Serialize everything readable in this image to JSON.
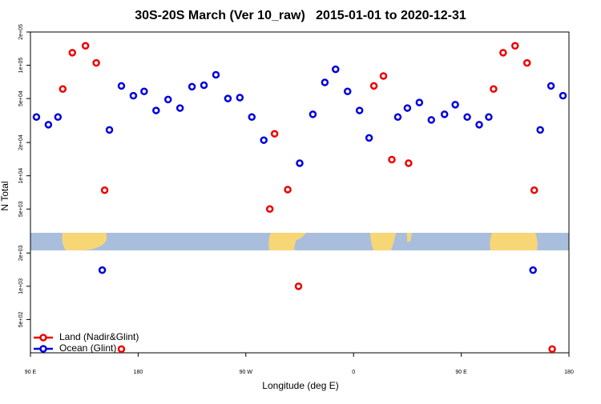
{
  "chart_data": {
    "type": "scatter",
    "title": "30S-20S March (Ver 10_raw)   2015-01-01 to 2020-12-31",
    "x_label": "Longitude (deg E)",
    "y_label": "N Total",
    "xlim": [
      90,
      540
    ],
    "xticks": [
      {
        "value": 90,
        "label": "90 E"
      },
      180,
      {
        "value": 270,
        "label": "90 W"
      },
      {
        "value": 360,
        "label": "0"
      },
      {
        "value": 450,
        "label": "90 E"
      },
      {
        "value": 540,
        "label": "180"
      }
    ],
    "ylim": [
      250,
      200000
    ],
    "yticks": [
      {
        "value": 500,
        "label": "5e+02"
      },
      {
        "value": 1000,
        "label": "1e+03"
      },
      {
        "value": 2000,
        "label": "2e+03"
      },
      {
        "value": 5000,
        "label": "5e+03"
      },
      {
        "value": 10000,
        "label": "1e+04"
      },
      {
        "value": 20000,
        "label": "2e+04"
      },
      {
        "value": 50000,
        "label": "5e+04"
      },
      {
        "value": 100000,
        "label": "1e+05"
      },
      {
        "value": 200000,
        "label": "2e+05"
      }
    ],
    "log_y": true,
    "legend": "bottom-left",
    "series": [
      {
        "name": "Land (Nadir&Glint)",
        "color": "#ee0000",
        "x": [
          117,
          125,
          136,
          145,
          152,
          166,
          290,
          294,
          305,
          314,
          377,
          385,
          392,
          406,
          477,
          485,
          495,
          505,
          511,
          526
        ],
        "values": [
          61000,
          130000,
          150000,
          105000,
          7400,
          270,
          5000,
          24000,
          7500,
          1000,
          65000,
          80000,
          14000,
          13000,
          61000,
          130000,
          150000,
          105000,
          7400,
          270
        ]
      },
      {
        "name": "Ocean (Glint)",
        "color": "#0000dd",
        "x": [
          95,
          105,
          113,
          150,
          156,
          166,
          176,
          185,
          195,
          205,
          215,
          225,
          235,
          245,
          255,
          265,
          275,
          285,
          315,
          326,
          336,
          345,
          355,
          365,
          373,
          397,
          405,
          415,
          425,
          436,
          445,
          455,
          465,
          473,
          510,
          516,
          525,
          535
        ],
        "values": [
          34000,
          29000,
          34000,
          1400,
          26000,
          65000,
          53000,
          58000,
          39000,
          49000,
          41000,
          64000,
          66000,
          82000,
          50000,
          51000,
          34000,
          21000,
          13000,
          36000,
          70000,
          92000,
          58000,
          39000,
          22000,
          34000,
          41000,
          46000,
          32000,
          36000,
          44000,
          34000,
          29000,
          34000,
          1400,
          26000,
          65000,
          53000
        ]
      }
    ]
  }
}
